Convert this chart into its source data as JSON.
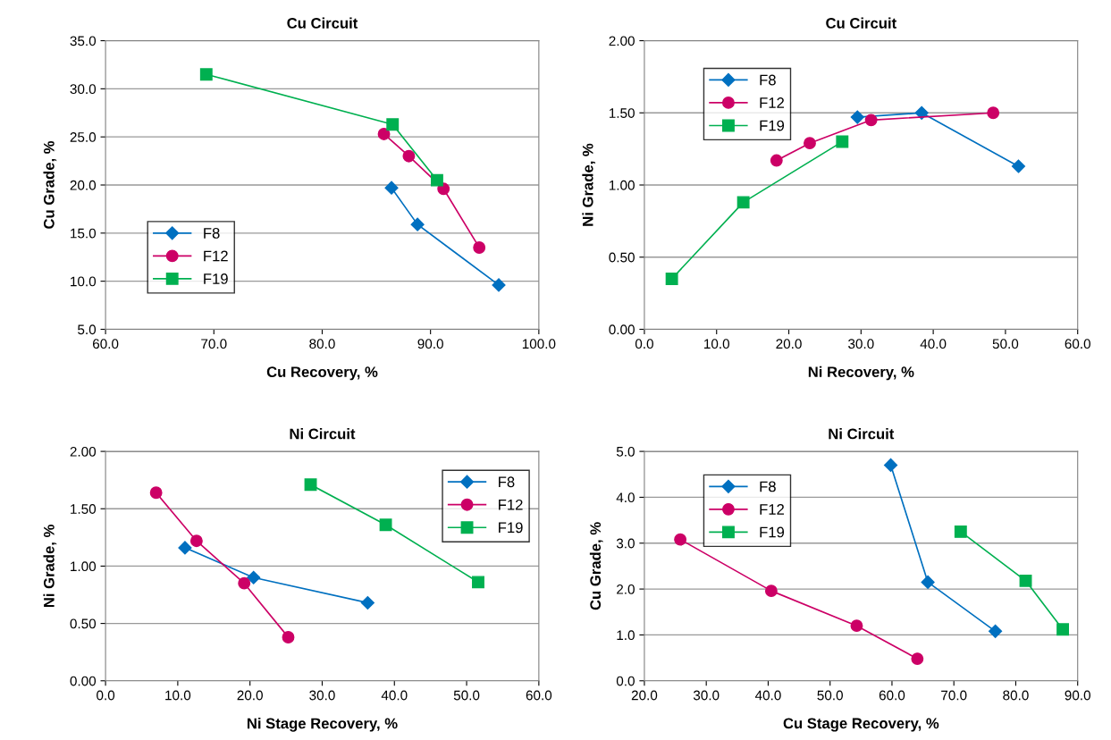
{
  "chart_data": [
    {
      "type": "line",
      "title": "Cu Circuit",
      "xlabel": "Cu Recovery, %",
      "ylabel": "Cu Grade, %",
      "xlim": [
        60,
        100
      ],
      "xticks": [
        {
          "value": 60,
          "label": "60.0"
        },
        {
          "value": 70,
          "label": "70.0"
        },
        {
          "value": 80,
          "label": "80.0"
        },
        {
          "value": 90,
          "label": "90.0"
        },
        {
          "value": 100,
          "label": "100.0"
        }
      ],
      "ylim": [
        5,
        35
      ],
      "yticks": [
        {
          "value": 5,
          "label": "5.0"
        },
        {
          "value": 10,
          "label": "10.0"
        },
        {
          "value": 15,
          "label": "15.0"
        },
        {
          "value": 20,
          "label": "20.0"
        },
        {
          "value": 25,
          "label": "25.0"
        },
        {
          "value": 30,
          "label": "30.0"
        },
        {
          "value": 35,
          "label": "35.0"
        }
      ],
      "grid": "y",
      "legend": "bottom left",
      "line_style": "solid",
      "series": [
        {
          "name": "F8",
          "color": "#0070c0",
          "marker": "diamond",
          "x": [
            86.4,
            88.8,
            96.3
          ],
          "values": [
            19.7,
            15.9,
            9.6
          ]
        },
        {
          "name": "F12",
          "color": "#cc0066",
          "marker": "circle",
          "x": [
            85.7,
            88.0,
            91.2,
            94.5
          ],
          "values": [
            25.3,
            23.0,
            19.6,
            13.5
          ]
        },
        {
          "name": "F19",
          "color": "#00b050",
          "marker": "square",
          "x": [
            69.3,
            86.5,
            90.6
          ],
          "values": [
            31.5,
            26.3,
            20.5
          ]
        }
      ]
    },
    {
      "type": "line",
      "title": "Cu Circuit",
      "xlabel": "Ni Recovery, %",
      "ylabel": "Ni Grade, %",
      "xlim": [
        0,
        60
      ],
      "xticks": [
        {
          "value": 0,
          "label": "0.0"
        },
        {
          "value": 10,
          "label": "10.0"
        },
        {
          "value": 20,
          "label": "20.0"
        },
        {
          "value": 30,
          "label": "30.0"
        },
        {
          "value": 40,
          "label": "40.0"
        },
        {
          "value": 50,
          "label": "50.0"
        },
        {
          "value": 60,
          "label": "60.0"
        }
      ],
      "ylim": [
        0,
        2
      ],
      "yticks": [
        {
          "value": 0,
          "label": "0.00"
        },
        {
          "value": 0.5,
          "label": "0.50"
        },
        {
          "value": 1,
          "label": "1.00"
        },
        {
          "value": 1.5,
          "label": "1.50"
        },
        {
          "value": 2,
          "label": "2.00"
        }
      ],
      "grid": "y",
      "legend": "top left",
      "line_style": "solid",
      "series": [
        {
          "name": "F8",
          "color": "#0070c0",
          "marker": "diamond",
          "x": [
            29.5,
            38.4,
            51.8
          ],
          "values": [
            1.47,
            1.5,
            1.13
          ]
        },
        {
          "name": "F12",
          "color": "#cc0066",
          "marker": "circle",
          "x": [
            18.3,
            22.9,
            31.4,
            48.3
          ],
          "values": [
            1.17,
            1.29,
            1.45,
            1.5
          ]
        },
        {
          "name": "F19",
          "color": "#00b050",
          "marker": "square",
          "x": [
            3.8,
            13.7,
            27.4
          ],
          "values": [
            0.35,
            0.88,
            1.3
          ]
        }
      ]
    },
    {
      "type": "line",
      "title": "Ni Circuit",
      "xlabel": "Ni Stage Recovery, %",
      "ylabel": "Ni Grade, %",
      "xlim": [
        0,
        60
      ],
      "xticks": [
        {
          "value": 0,
          "label": "0.0"
        },
        {
          "value": 10,
          "label": "10.0"
        },
        {
          "value": 20,
          "label": "20.0"
        },
        {
          "value": 30,
          "label": "30.0"
        },
        {
          "value": 40,
          "label": "40.0"
        },
        {
          "value": 50,
          "label": "50.0"
        },
        {
          "value": 60,
          "label": "60.0"
        }
      ],
      "ylim": [
        0,
        2
      ],
      "yticks": [
        {
          "value": 0,
          "label": "0.00"
        },
        {
          "value": 0.5,
          "label": "0.50"
        },
        {
          "value": 1,
          "label": "1.00"
        },
        {
          "value": 1.5,
          "label": "1.50"
        },
        {
          "value": 2,
          "label": "2.00"
        }
      ],
      "grid": "y",
      "legend": "top right",
      "line_style": "solid",
      "series": [
        {
          "name": "F8",
          "color": "#0070c0",
          "marker": "diamond",
          "x": [
            11.0,
            20.5,
            36.3
          ],
          "values": [
            1.16,
            0.9,
            0.68
          ]
        },
        {
          "name": "F12",
          "color": "#cc0066",
          "marker": "circle",
          "x": [
            7.0,
            12.6,
            19.2,
            25.3
          ],
          "values": [
            1.64,
            1.22,
            0.85,
            0.38
          ]
        },
        {
          "name": "F19",
          "color": "#00b050",
          "marker": "square",
          "x": [
            28.4,
            38.8,
            51.6
          ],
          "values": [
            1.71,
            1.36,
            0.86
          ]
        }
      ]
    },
    {
      "type": "line",
      "title": "Ni Circuit",
      "xlabel": "Cu Stage Recovery, %",
      "ylabel": "Cu Grade, %",
      "xlim": [
        20,
        90
      ],
      "xticks": [
        {
          "value": 20,
          "label": "20.0"
        },
        {
          "value": 30,
          "label": "30.0"
        },
        {
          "value": 40,
          "label": "40.0"
        },
        {
          "value": 50,
          "label": "50.0"
        },
        {
          "value": 60,
          "label": "60.0"
        },
        {
          "value": 70,
          "label": "70.0"
        },
        {
          "value": 80,
          "label": "80.0"
        },
        {
          "value": 90,
          "label": "90.0"
        }
      ],
      "ylim": [
        0,
        5
      ],
      "yticks": [
        {
          "value": 0,
          "label": "0.0"
        },
        {
          "value": 1,
          "label": "1.0"
        },
        {
          "value": 2,
          "label": "2.0"
        },
        {
          "value": 3,
          "label": "3.0"
        },
        {
          "value": 4,
          "label": "4.0"
        },
        {
          "value": 5,
          "label": "5.0"
        }
      ],
      "grid": "y",
      "legend": "top left",
      "line_style": "solid",
      "series": [
        {
          "name": "F8",
          "color": "#0070c0",
          "marker": "diamond",
          "x": [
            59.8,
            65.8,
            76.7
          ],
          "values": [
            4.7,
            2.15,
            1.08
          ]
        },
        {
          "name": "F12",
          "color": "#cc0066",
          "marker": "circle",
          "x": [
            25.8,
            40.5,
            54.3,
            64.1
          ],
          "values": [
            3.08,
            1.96,
            1.2,
            0.48
          ]
        },
        {
          "name": "F19",
          "color": "#00b050",
          "marker": "square",
          "x": [
            71.1,
            81.6,
            87.6
          ],
          "values": [
            3.25,
            2.18,
            1.12
          ]
        }
      ]
    }
  ]
}
